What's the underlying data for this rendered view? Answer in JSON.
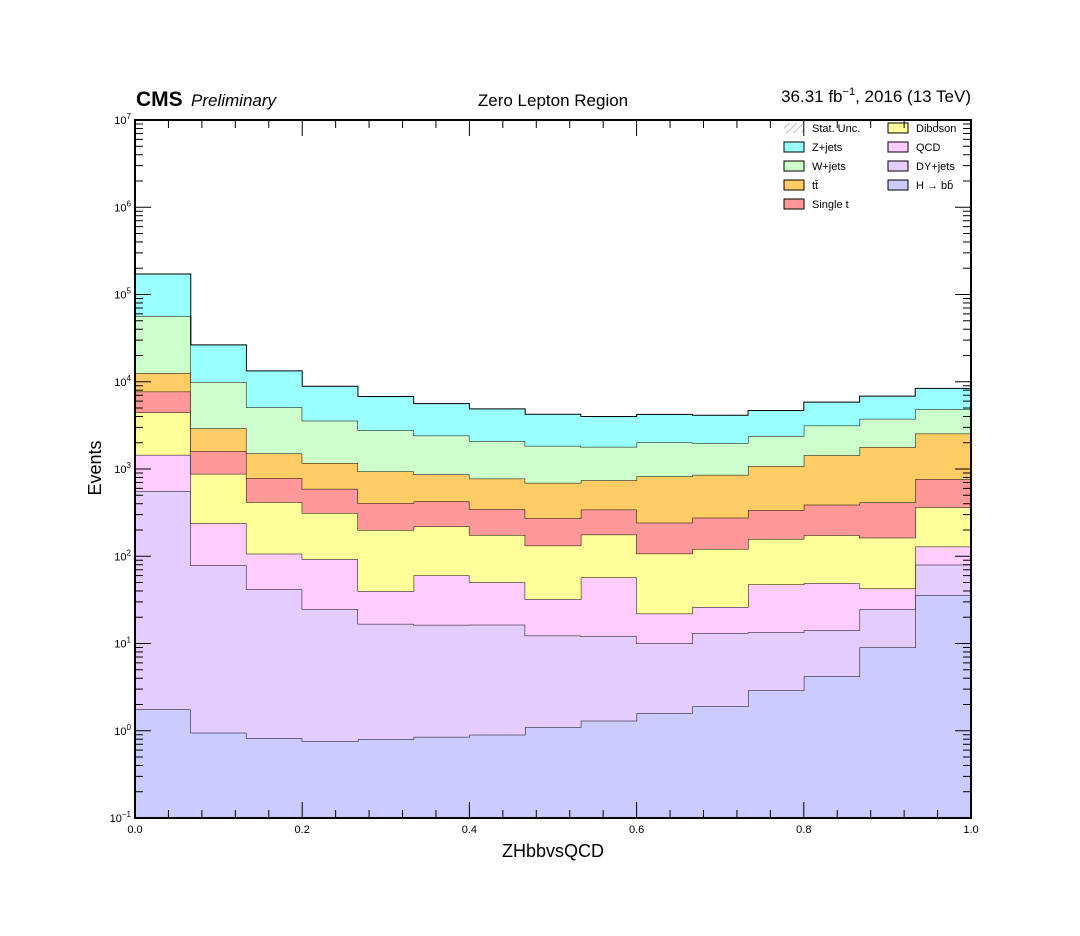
{
  "header": {
    "cms": "CMS",
    "preliminary": "Preliminary",
    "title": "Zero Lepton Region",
    "lumi_value": "36.31 fb",
    "lumi_exp": "−1",
    "lumi_rest": ", 2016 (13 TeV)"
  },
  "colors": {
    "H_bb": "#cbcbff",
    "DY_jets": "#e5ccff",
    "QCD": "#ffccff",
    "Diboson": "#ffff99",
    "Single_t": "#ff9999",
    "ttbar": "#ffcc66",
    "W_jets": "#ccffcc",
    "Z_jets": "#99ffff",
    "stat_unc": "#888888"
  },
  "chart_data": {
    "type": "area",
    "stacked": true,
    "histogram": true,
    "xlabel": "ZHbbvsQCD",
    "ylabel": "Events",
    "xlim": [
      0.0,
      1.0
    ],
    "ylim": [
      0.1,
      10000000
    ],
    "yscale": "log",
    "x_ticks": [
      {
        "value": 0.0,
        "label": "0.0"
      },
      {
        "value": 0.2,
        "label": "0.2"
      },
      {
        "value": 0.4,
        "label": "0.4"
      },
      {
        "value": 0.6,
        "label": "0.6"
      },
      {
        "value": 0.8,
        "label": "0.8"
      },
      {
        "value": 1.0,
        "label": "1.0"
      }
    ],
    "y_ticks": [
      {
        "value": 0.1,
        "base": "10",
        "exp": "−1"
      },
      {
        "value": 1,
        "base": "10",
        "exp": "0"
      },
      {
        "value": 10,
        "base": "10",
        "exp": "1"
      },
      {
        "value": 100,
        "base": "10",
        "exp": "2"
      },
      {
        "value": 1000,
        "base": "10",
        "exp": "3"
      },
      {
        "value": 10000,
        "base": "10",
        "exp": "4"
      },
      {
        "value": 100000,
        "base": "10",
        "exp": "5"
      },
      {
        "value": 1000000,
        "base": "10",
        "exp": "6"
      },
      {
        "value": 10000000,
        "base": "10",
        "exp": "7"
      }
    ],
    "bin_edges": [
      0.0,
      0.0667,
      0.1333,
      0.2,
      0.2667,
      0.3333,
      0.4,
      0.4667,
      0.5333,
      0.6,
      0.6667,
      0.7333,
      0.8,
      0.8667,
      0.9333,
      1.0
    ],
    "series": [
      {
        "key": "H_bb",
        "values": [
          1.75,
          0.95,
          0.82,
          0.76,
          0.8,
          0.85,
          0.9,
          1.1,
          1.3,
          1.6,
          1.9,
          2.9,
          4.2,
          9.0,
          36.0
        ]
      },
      {
        "key": "DY_jets",
        "values": [
          555,
          78,
          41,
          24,
          16,
          15.5,
          15.5,
          11.2,
          10.8,
          8.4,
          11.3,
          10.5,
          10.0,
          15.7,
          44.0
        ]
      },
      {
        "key": "QCD",
        "values": [
          895,
          160,
          65,
          68,
          23,
          44,
          34,
          20,
          45,
          12,
          13,
          34,
          35,
          18,
          49
        ]
      },
      {
        "key": "Diboson",
        "values": [
          3000,
          640,
          310,
          220,
          160,
          160,
          125,
          100,
          120,
          85,
          95,
          110,
          125,
          120,
          235
        ]
      },
      {
        "key": "Single_t",
        "values": [
          3250,
          720,
          370,
          280,
          205,
          205,
          170,
          140,
          165,
          135,
          155,
          180,
          215,
          250,
          400
        ]
      },
      {
        "key": "ttbar",
        "values": [
          4900,
          1330,
          720,
          580,
          530,
          440,
          430,
          420,
          400,
          580,
          580,
          740,
          1050,
          1370,
          1780
        ]
      },
      {
        "key": "W_jets",
        "values": [
          44000,
          7000,
          3600,
          2400,
          1850,
          1550,
          1320,
          1150,
          1050,
          1200,
          1130,
          1300,
          1700,
          1970,
          2300
        ]
      },
      {
        "key": "Z_jets",
        "values": [
          115000,
          16500,
          8200,
          5300,
          4000,
          3200,
          2800,
          2400,
          2200,
          2200,
          2150,
          2300,
          2700,
          3100,
          3550
        ]
      }
    ],
    "legend": {
      "placement": "top-right",
      "columns": [
        [
          {
            "key": "stat_unc",
            "label": "Stat. Unc."
          },
          {
            "key": "Z_jets",
            "label": "Z+jets"
          },
          {
            "key": "W_jets",
            "label": "W+jets"
          },
          {
            "key": "ttbar",
            "label": "tt̄"
          },
          {
            "key": "Single_t",
            "label": "Single t"
          }
        ],
        [
          {
            "key": "Diboson",
            "label": "Diboson"
          },
          {
            "key": "QCD",
            "label": "QCD"
          },
          {
            "key": "DY_jets",
            "label": "DY+jets"
          },
          {
            "key": "H_bb",
            "label": "H → bb̄"
          }
        ]
      ]
    }
  }
}
